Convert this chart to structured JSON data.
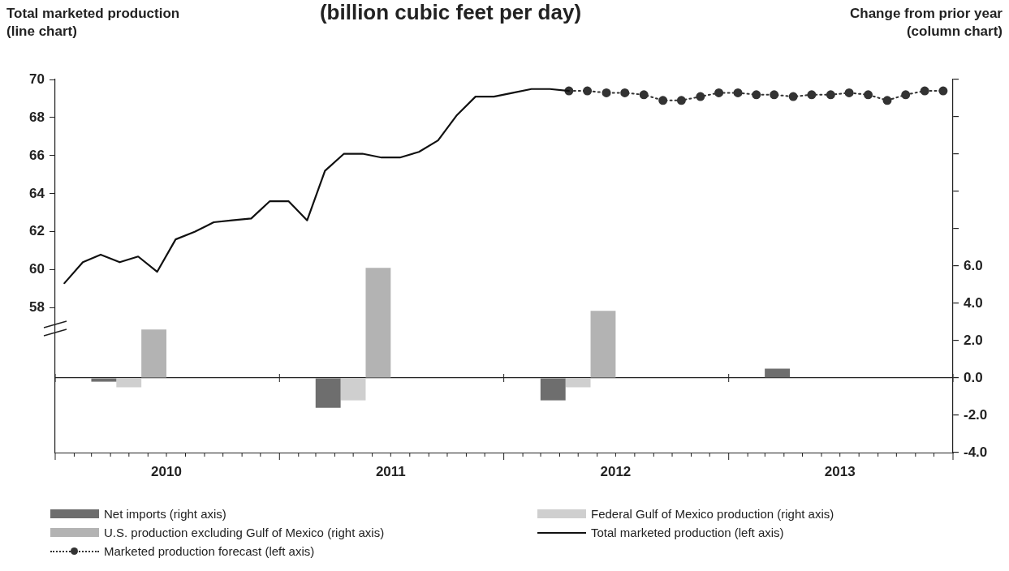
{
  "chart_data": {
    "type": "bar",
    "title": "(billion cubic feet per day)",
    "ylabel": "Total marketed production\n(line chart)",
    "y2label": "Change from prior year\n(column chart)",
    "series": [
      {
        "name": "Net imports (right axis)",
        "axis": "y2",
        "color": "#6e6e6e",
        "x": [
          "2010-07-01",
          "2011-07-01",
          "2012-07-01",
          "2013-07-01"
        ],
        "values": [
          -0.2,
          -1.6,
          -1.2,
          0.5
        ]
      },
      {
        "name": "Federal Gulf of Mexico production (right axis)",
        "axis": "y2",
        "color": "#cfcfcf",
        "x": [
          "2010-07-01",
          "2011-07-01",
          "2012-07-01"
        ],
        "values": [
          -0.5,
          -1.2,
          -0.5
        ]
      },
      {
        "name": "U.S. production excluding Gulf of Mexico (right axis)",
        "axis": "y2",
        "color": "#b3b3b3",
        "x": [
          "2010-07-01",
          "2011-07-01",
          "2012-07-01"
        ],
        "values": [
          2.6,
          5.9,
          3.6
        ]
      },
      {
        "name": "Total marketed production (left axis)",
        "type": "line",
        "axis": "y",
        "color": "#111111",
        "marker": "none",
        "line_style": "solid",
        "x": [
          "2010-01-16",
          "2010-02-15",
          "2010-03-16",
          "2010-04-16",
          "2010-05-16",
          "2010-06-16",
          "2010-07-16",
          "2010-08-16",
          "2010-09-16",
          "2010-10-16",
          "2010-11-16",
          "2010-12-16",
          "2011-01-16",
          "2011-02-15",
          "2011-03-16",
          "2011-04-16",
          "2011-05-16",
          "2011-06-16",
          "2011-07-16",
          "2011-08-16",
          "2011-09-16",
          "2011-10-16",
          "2011-11-16",
          "2011-12-16",
          "2012-01-16",
          "2012-02-15",
          "2012-03-16",
          "2012-04-16"
        ],
        "values": [
          59.3,
          60.4,
          60.8,
          60.4,
          60.7,
          59.9,
          61.6,
          62.0,
          62.5,
          62.6,
          62.7,
          63.6,
          63.6,
          62.6,
          65.2,
          66.1,
          66.1,
          65.9,
          65.9,
          66.2,
          66.8,
          68.1,
          69.1,
          69.1,
          69.3,
          69.5,
          69.5,
          69.4
        ]
      },
      {
        "name": "Marketed production forecast (left axis)",
        "type": "line",
        "axis": "y",
        "color": "#333333",
        "marker": "circle",
        "line_style": "dotted",
        "x": [
          "2012-04-16",
          "2012-05-16",
          "2012-06-16",
          "2012-07-16",
          "2012-08-16",
          "2012-09-16",
          "2012-10-16",
          "2012-11-16",
          "2012-12-16",
          "2013-01-16",
          "2013-02-15",
          "2013-03-16",
          "2013-04-16",
          "2013-05-16",
          "2013-06-16",
          "2013-07-16",
          "2013-08-16",
          "2013-09-16",
          "2013-10-16",
          "2013-11-16",
          "2013-12-16"
        ],
        "values": [
          69.4,
          69.4,
          69.3,
          69.3,
          69.2,
          68.9,
          68.9,
          69.1,
          69.3,
          69.3,
          69.2,
          69.2,
          69.1,
          69.2,
          69.2,
          69.3,
          69.2,
          68.9,
          69.2,
          69.4,
          69.4
        ]
      }
    ],
    "xlim": [
      "2010-01-01",
      "2014-01-01"
    ],
    "xticks": [
      {
        "value": "2010-01",
        "label": null
      },
      {
        "value": "2010-02",
        "label": null
      },
      {
        "value": "2010-03",
        "label": null
      },
      {
        "value": "2010-04",
        "label": null
      },
      {
        "value": "2010-05",
        "label": null
      },
      {
        "value": "2010-06",
        "label": null
      },
      {
        "value": "2010-07",
        "label": "2010"
      },
      {
        "value": "2010-08",
        "label": null
      },
      {
        "value": "2010-09",
        "label": null
      },
      {
        "value": "2010-10",
        "label": null
      },
      {
        "value": "2010-11",
        "label": null
      },
      {
        "value": "2010-12",
        "label": null
      },
      {
        "value": "2011-01",
        "label": null
      },
      {
        "value": "2011-02",
        "label": null
      },
      {
        "value": "2011-03",
        "label": null
      },
      {
        "value": "2011-04",
        "label": null
      },
      {
        "value": "2011-05",
        "label": null
      },
      {
        "value": "2011-06",
        "label": null
      },
      {
        "value": "2011-07",
        "label": "2011"
      },
      {
        "value": "2011-08",
        "label": null
      },
      {
        "value": "2011-09",
        "label": null
      },
      {
        "value": "2011-10",
        "label": null
      },
      {
        "value": "2011-11",
        "label": null
      },
      {
        "value": "2011-12",
        "label": null
      },
      {
        "value": "2012-01",
        "label": null
      },
      {
        "value": "2012-02",
        "label": null
      },
      {
        "value": "2012-03",
        "label": null
      },
      {
        "value": "2012-04",
        "label": null
      },
      {
        "value": "2012-05",
        "label": null
      },
      {
        "value": "2012-06",
        "label": null
      },
      {
        "value": "2012-07",
        "label": "2012"
      },
      {
        "value": "2012-08",
        "label": null
      },
      {
        "value": "2012-09",
        "label": null
      },
      {
        "value": "2012-10",
        "label": null
      },
      {
        "value": "2012-11",
        "label": null
      },
      {
        "value": "2012-12",
        "label": null
      },
      {
        "value": "2013-01",
        "label": null
      },
      {
        "value": "2013-02",
        "label": null
      },
      {
        "value": "2013-03",
        "label": null
      },
      {
        "value": "2013-04",
        "label": null
      },
      {
        "value": "2013-05",
        "label": null
      },
      {
        "value": "2013-06",
        "label": null
      },
      {
        "value": "2013-07",
        "label": "2013"
      },
      {
        "value": "2013-08",
        "label": null
      },
      {
        "value": "2013-09",
        "label": null
      },
      {
        "value": "2013-10",
        "label": null
      },
      {
        "value": "2013-11",
        "label": null
      },
      {
        "value": "2013-12",
        "label": null
      },
      {
        "value": "2014-01",
        "label": null
      }
    ],
    "ylim": [
      50.4,
      70
    ],
    "yticks": [
      58,
      60,
      62,
      64,
      66,
      68,
      70
    ],
    "y2lim": [
      -4,
      16
    ],
    "y2ticks": [
      {
        "value": -4,
        "label": "-4.0"
      },
      {
        "value": -2,
        "label": "-2.0"
      },
      {
        "value": 0,
        "label": "0.0"
      },
      {
        "value": 2,
        "label": "2.0"
      },
      {
        "value": 4,
        "label": "4.0"
      },
      {
        "value": 6,
        "label": "6.0"
      },
      {
        "value": 8,
        "label": null
      },
      {
        "value": 10,
        "label": null
      },
      {
        "value": 12,
        "label": null
      },
      {
        "value": 14,
        "label": null
      },
      {
        "value": 16,
        "label": null
      }
    ],
    "legend": "bottom"
  }
}
